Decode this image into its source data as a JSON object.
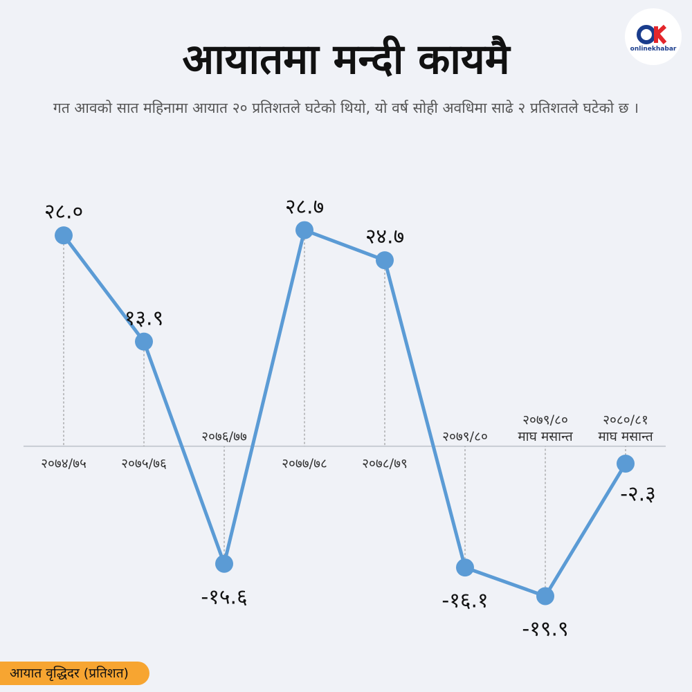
{
  "logo": "onlinekhabar",
  "chart_data": {
    "type": "line",
    "title": "आयातमा मन्दी कायमै",
    "subtitle": "गत आवको सात महिनामा आयात २० प्रतिशतले घटेको थियो, यो वर्ष सोही अवधिमा साढे २ प्रतिशतले घटेको छ ।",
    "y_label": "आयात वृद्धिदर (प्रतिशत)",
    "categories": [
      "२०७४/७५",
      "२०७५/७६",
      "२०७६/७७",
      "२०७७/७८",
      "२०७८/७९",
      "२०७९/८०",
      "२०७९/८०\nमाघ मसान्त",
      "२०८०/८१\nमाघ मसान्त"
    ],
    "series": [
      {
        "name": "आयात वृद्धिदर",
        "color": "#5b9bd5",
        "values": [
          28.0,
          13.9,
          -15.6,
          28.7,
          24.7,
          -16.1,
          -19.9,
          -2.3
        ],
        "value_labels": [
          "२८.०",
          "१३.९",
          "-१५.६",
          "२८.७",
          "२४.७",
          "-१६.१",
          "-१९.९",
          "-२.३"
        ]
      }
    ],
    "ylim": [
      -25,
      35
    ]
  }
}
